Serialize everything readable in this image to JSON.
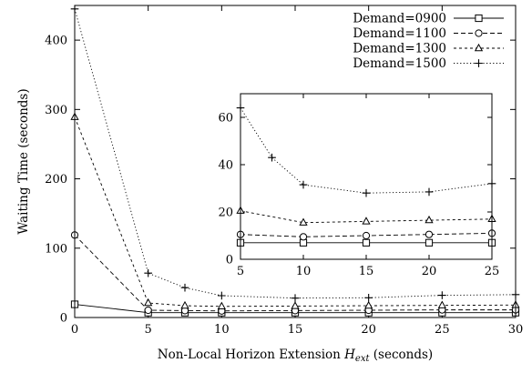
{
  "chart_data": [
    {
      "type": "line",
      "title": "",
      "xlabel": "Non-Local Horizon Extension",
      "xlabel_symbol": "H",
      "xlabel_subscript": "ext",
      "xlabel_unit": "(seconds)",
      "ylabel": "Waiting Time (seconds)",
      "xlim": [
        0,
        30
      ],
      "ylim": [
        0,
        450
      ],
      "xticks": [
        0,
        5,
        10,
        15,
        20,
        25,
        30
      ],
      "yticks": [
        0,
        100,
        200,
        300,
        400
      ],
      "grid": false,
      "legend_position": "top-right",
      "series": [
        {
          "name": "Demand=0900",
          "marker": "square",
          "dash": "solid",
          "x": [
            0,
            5,
            7.5,
            10,
            15,
            20,
            25,
            30
          ],
          "y": [
            19,
            7,
            7,
            7,
            7,
            7,
            7,
            7
          ]
        },
        {
          "name": "Demand=1100",
          "marker": "circle",
          "dash": "dashed",
          "x": [
            0,
            5,
            7.5,
            10,
            15,
            20,
            25,
            30
          ],
          "y": [
            119,
            10.5,
            10,
            9.5,
            10,
            10.5,
            11,
            11
          ]
        },
        {
          "name": "Demand=1300",
          "marker": "triangle",
          "dash": "short-dash",
          "x": [
            0,
            5,
            7.5,
            10,
            15,
            20,
            25,
            30
          ],
          "y": [
            289,
            21,
            17,
            16,
            16.5,
            17,
            17.5,
            18
          ]
        },
        {
          "name": "Demand=1500",
          "marker": "plus",
          "dash": "dotted",
          "x": [
            0,
            5,
            7.5,
            10,
            15,
            20,
            25,
            30
          ],
          "y": [
            445,
            64,
            43,
            31.5,
            28,
            28.5,
            32,
            33
          ]
        }
      ]
    },
    {
      "type": "line",
      "role": "inset",
      "title": "",
      "xlabel": "",
      "ylabel": "",
      "xlim": [
        5,
        25
      ],
      "ylim": [
        0,
        70
      ],
      "xticks": [
        5,
        10,
        15,
        20,
        25
      ],
      "yticks": [
        0,
        20,
        40,
        60
      ],
      "grid": false,
      "series": [
        {
          "marker": "square",
          "dash": "solid",
          "x": [
            5,
            10,
            15,
            20,
            25
          ],
          "y": [
            7,
            7,
            7,
            7,
            7
          ]
        },
        {
          "marker": "circle",
          "dash": "dashed",
          "x": [
            5,
            10,
            15,
            20,
            25
          ],
          "y": [
            10.5,
            9.5,
            10,
            10.5,
            11
          ]
        },
        {
          "marker": "triangle",
          "dash": "short-dash",
          "x": [
            5,
            10,
            15,
            20,
            25
          ],
          "y": [
            20.5,
            15.5,
            16,
            16.5,
            17
          ]
        },
        {
          "marker": "plus",
          "dash": "dotted",
          "x": [
            5,
            7.5,
            10,
            15,
            20,
            25
          ],
          "y": [
            64,
            43,
            31.5,
            28,
            28.5,
            32
          ]
        }
      ]
    }
  ]
}
